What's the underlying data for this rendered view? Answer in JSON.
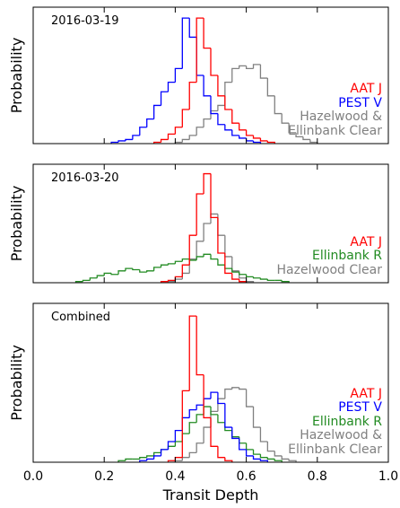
{
  "chart_data": [
    {
      "type": "histogram",
      "annotation": "2016-03-19",
      "ylabel": "Probability",
      "xlim": [
        0,
        1
      ],
      "ylim": [
        0,
        1
      ],
      "series": [
        {
          "name": "AAT J",
          "color": "#ff0000",
          "bins": [
            0.34,
            0.36,
            0.38,
            0.4,
            0.42,
            0.44,
            0.46,
            0.48,
            0.5,
            0.52,
            0.54,
            0.56,
            0.58,
            0.6,
            0.62,
            0.64,
            0.66,
            0.68
          ],
          "values": [
            0.01,
            0.03,
            0.07,
            0.12,
            0.25,
            0.45,
            0.92,
            0.7,
            0.5,
            0.35,
            0.25,
            0.15,
            0.1,
            0.06,
            0.04,
            0.02,
            0.01
          ]
        },
        {
          "name": "PEST V",
          "color": "#0000ff",
          "bins": [
            0.22,
            0.24,
            0.26,
            0.28,
            0.3,
            0.32,
            0.34,
            0.36,
            0.38,
            0.4,
            0.42,
            0.44,
            0.46,
            0.48,
            0.5,
            0.52,
            0.54,
            0.56,
            0.58,
            0.6,
            0.62,
            0.64
          ],
          "values": [
            0.01,
            0.02,
            0.03,
            0.06,
            0.12,
            0.18,
            0.28,
            0.38,
            0.45,
            0.55,
            0.92,
            0.78,
            0.5,
            0.35,
            0.22,
            0.14,
            0.1,
            0.06,
            0.04,
            0.02,
            0.01
          ]
        },
        {
          "name": "Hazelwood & Ellinbank Clear",
          "color": "#808080",
          "bins": [
            0.4,
            0.42,
            0.44,
            0.46,
            0.48,
            0.5,
            0.52,
            0.54,
            0.56,
            0.58,
            0.6,
            0.62,
            0.64,
            0.66,
            0.68,
            0.7,
            0.72,
            0.74,
            0.76,
            0.78,
            0.8
          ],
          "values": [
            0.01,
            0.03,
            0.06,
            0.12,
            0.18,
            0.24,
            0.28,
            0.45,
            0.55,
            0.57,
            0.55,
            0.58,
            0.48,
            0.35,
            0.22,
            0.15,
            0.08,
            0.05,
            0.03,
            0.01
          ]
        }
      ]
    },
    {
      "type": "histogram",
      "annotation": "2016-03-20",
      "ylabel": "Probability",
      "xlim": [
        0,
        1
      ],
      "ylim": [
        0,
        1
      ],
      "series": [
        {
          "name": "AAT J",
          "color": "#ff0000",
          "bins": [
            0.36,
            0.38,
            0.4,
            0.42,
            0.44,
            0.46,
            0.48,
            0.5,
            0.52,
            0.54,
            0.56,
            0.58,
            0.6
          ],
          "values": [
            0.01,
            0.02,
            0.05,
            0.15,
            0.4,
            0.75,
            0.92,
            0.55,
            0.25,
            0.08,
            0.03,
            0.01
          ]
        },
        {
          "name": "Ellinbank R",
          "color": "#228b22",
          "bins": [
            0.12,
            0.14,
            0.16,
            0.18,
            0.2,
            0.22,
            0.24,
            0.26,
            0.28,
            0.3,
            0.32,
            0.34,
            0.36,
            0.38,
            0.4,
            0.42,
            0.44,
            0.46,
            0.48,
            0.5,
            0.52,
            0.54,
            0.56,
            0.58,
            0.6,
            0.62,
            0.64,
            0.66,
            0.68,
            0.7,
            0.72
          ],
          "values": [
            0.01,
            0.02,
            0.04,
            0.06,
            0.08,
            0.07,
            0.1,
            0.12,
            0.11,
            0.09,
            0.1,
            0.13,
            0.15,
            0.16,
            0.18,
            0.2,
            0.19,
            0.22,
            0.24,
            0.2,
            0.15,
            0.12,
            0.09,
            0.07,
            0.05,
            0.04,
            0.03,
            0.02,
            0.02,
            0.01
          ]
        },
        {
          "name": "Hazelwood Clear",
          "color": "#808080",
          "bins": [
            0.38,
            0.4,
            0.42,
            0.44,
            0.46,
            0.48,
            0.5,
            0.52,
            0.54,
            0.56,
            0.58,
            0.6,
            0.62
          ],
          "values": [
            0.01,
            0.03,
            0.08,
            0.2,
            0.35,
            0.5,
            0.58,
            0.4,
            0.22,
            0.1,
            0.04,
            0.01
          ]
        }
      ]
    },
    {
      "type": "histogram",
      "annotation": "Combined",
      "ylabel": "Probability",
      "xlabel": "Transit Depth",
      "xlim": [
        0,
        1
      ],
      "ylim": [
        0,
        1
      ],
      "xticks": [
        {
          "value": 0,
          "label": "0.0"
        },
        0.2,
        0.4,
        0.6,
        0.8,
        {
          "value": 1,
          "label": "1.0"
        }
      ],
      "series": [
        {
          "name": "AAT J",
          "color": "#ff0000",
          "bins": [
            0.38,
            0.4,
            0.42,
            0.44,
            0.46,
            0.48,
            0.5,
            0.52,
            0.54,
            0.56
          ],
          "values": [
            0.01,
            0.03,
            0.45,
            0.92,
            0.55,
            0.28,
            0.1,
            0.03,
            0.01
          ]
        },
        {
          "name": "PEST V",
          "color": "#0000ff",
          "bins": [
            0.3,
            0.32,
            0.34,
            0.36,
            0.38,
            0.4,
            0.42,
            0.44,
            0.46,
            0.48,
            0.5,
            0.52,
            0.54,
            0.56,
            0.58,
            0.6,
            0.62,
            0.64,
            0.66
          ],
          "values": [
            0.01,
            0.02,
            0.04,
            0.08,
            0.13,
            0.2,
            0.28,
            0.33,
            0.36,
            0.4,
            0.44,
            0.37,
            0.22,
            0.15,
            0.08,
            0.04,
            0.02,
            0.01
          ]
        },
        {
          "name": "Ellinbank R",
          "color": "#228b22",
          "bins": [
            0.24,
            0.26,
            0.28,
            0.3,
            0.32,
            0.34,
            0.36,
            0.38,
            0.4,
            0.42,
            0.44,
            0.46,
            0.48,
            0.5,
            0.52,
            0.54,
            0.56,
            0.58,
            0.6,
            0.62,
            0.64,
            0.66,
            0.68,
            0.7
          ],
          "values": [
            0.01,
            0.02,
            0.02,
            0.03,
            0.04,
            0.06,
            0.08,
            0.1,
            0.13,
            0.18,
            0.25,
            0.3,
            0.35,
            0.3,
            0.25,
            0.2,
            0.16,
            0.12,
            0.08,
            0.05,
            0.03,
            0.02,
            0.01
          ]
        },
        {
          "name": "Hazelwood & Ellinbank Clear",
          "color": "#808080",
          "bins": [
            0.4,
            0.42,
            0.44,
            0.46,
            0.48,
            0.5,
            0.52,
            0.54,
            0.56,
            0.58,
            0.6,
            0.62,
            0.64,
            0.66,
            0.68,
            0.7,
            0.72,
            0.74
          ],
          "values": [
            0.01,
            0.03,
            0.06,
            0.12,
            0.22,
            0.32,
            0.4,
            0.46,
            0.47,
            0.46,
            0.35,
            0.22,
            0.13,
            0.07,
            0.04,
            0.02,
            0.01
          ]
        }
      ]
    }
  ]
}
